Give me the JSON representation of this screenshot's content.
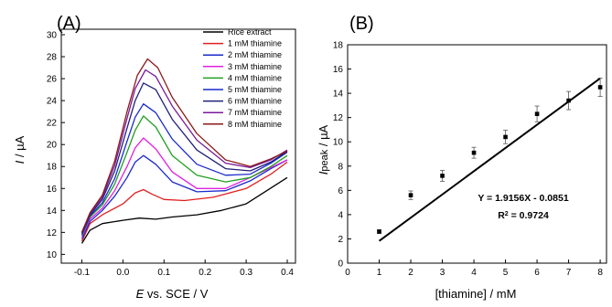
{
  "chart_data": [
    {
      "type": "line",
      "panel": "(A)",
      "xlabel_italic": "E",
      "xlabel_rest": " vs. SCE / V",
      "ylabel_italic": "I",
      "ylabel_rest": " / µA",
      "xlim": [
        -0.15,
        0.42
      ],
      "ylim": [
        9.2,
        30.5
      ],
      "xticks": [
        -0.1,
        0.0,
        0.1,
        0.2,
        0.3,
        0.4
      ],
      "xtick_labels": [
        "-0.1",
        "0.0",
        "0.1",
        "0.2",
        "0.3",
        "0.4"
      ],
      "yticks": [
        10,
        12,
        14,
        16,
        18,
        20,
        22,
        24,
        26,
        28,
        30
      ],
      "ytick_labels": [
        "10",
        "12",
        "14",
        "16",
        "18",
        "20",
        "22",
        "24",
        "26",
        "28",
        "30"
      ],
      "grid": false,
      "legend_position": "top-right",
      "series": [
        {
          "name": "Rice extract",
          "color": "#000000",
          "x": [
            -0.1,
            -0.08,
            -0.05,
            0.0,
            0.04,
            0.08,
            0.12,
            0.18,
            0.24,
            0.3,
            0.35,
            0.4
          ],
          "y": [
            11.0,
            12.2,
            12.8,
            13.1,
            13.3,
            13.2,
            13.4,
            13.6,
            14.0,
            14.6,
            15.8,
            17.0
          ]
        },
        {
          "name": "1 mM thiamine",
          "color": "#e02020",
          "x": [
            -0.1,
            -0.08,
            -0.05,
            0.0,
            0.03,
            0.05,
            0.07,
            0.1,
            0.15,
            0.22,
            0.3,
            0.36,
            0.4
          ],
          "y": [
            11.2,
            12.8,
            13.6,
            14.6,
            15.6,
            15.9,
            15.5,
            15.0,
            14.9,
            15.2,
            16.0,
            17.3,
            18.4
          ]
        },
        {
          "name": "2 mM thiamine",
          "color": "#1a2acc",
          "x": [
            -0.1,
            -0.08,
            -0.05,
            -0.02,
            0.01,
            0.03,
            0.05,
            0.08,
            0.12,
            0.18,
            0.25,
            0.31,
            0.36,
            0.4
          ],
          "y": [
            11.4,
            13.0,
            14.0,
            15.3,
            17.0,
            18.4,
            19.0,
            18.2,
            16.6,
            15.7,
            15.8,
            16.7,
            17.8,
            18.6
          ]
        },
        {
          "name": "3 mM thiamine",
          "color": "#e020e0",
          "x": [
            -0.1,
            -0.08,
            -0.05,
            -0.02,
            0.01,
            0.03,
            0.05,
            0.08,
            0.12,
            0.18,
            0.25,
            0.31,
            0.36,
            0.4
          ],
          "y": [
            11.6,
            13.2,
            14.2,
            15.8,
            18.0,
            19.7,
            20.6,
            19.6,
            17.5,
            16.0,
            16.0,
            17.0,
            17.9,
            18.6
          ]
        },
        {
          "name": "4 mM thiamine",
          "color": "#20a020",
          "x": [
            -0.1,
            -0.08,
            -0.05,
            -0.02,
            0.01,
            0.03,
            0.05,
            0.08,
            0.12,
            0.18,
            0.25,
            0.31,
            0.36,
            0.4
          ],
          "y": [
            11.7,
            13.4,
            14.5,
            16.4,
            19.3,
            21.3,
            22.6,
            21.6,
            19.0,
            17.2,
            16.6,
            17.0,
            18.0,
            19.0
          ]
        },
        {
          "name": "5 mM thiamine",
          "color": "#1a2acc",
          "x": [
            -0.1,
            -0.08,
            -0.05,
            -0.02,
            0.01,
            0.03,
            0.05,
            0.08,
            0.12,
            0.18,
            0.25,
            0.31,
            0.36,
            0.4
          ],
          "y": [
            11.8,
            13.5,
            14.7,
            16.9,
            20.3,
            22.5,
            23.7,
            22.9,
            20.5,
            18.2,
            17.2,
            17.3,
            18.3,
            19.3
          ]
        },
        {
          "name": "6 mM thiamine",
          "color": "#20207a",
          "x": [
            -0.1,
            -0.08,
            -0.05,
            -0.02,
            0.01,
            0.03,
            0.05,
            0.08,
            0.12,
            0.18,
            0.25,
            0.31,
            0.36,
            0.4
          ],
          "y": [
            11.9,
            13.6,
            15.0,
            17.6,
            21.5,
            24.0,
            25.6,
            25.0,
            22.3,
            19.5,
            17.8,
            17.6,
            18.4,
            19.4
          ]
        },
        {
          "name": "7 mM thiamine",
          "color": "#7a1a9a",
          "x": [
            -0.1,
            -0.08,
            -0.05,
            -0.02,
            0.01,
            0.03,
            0.055,
            0.08,
            0.12,
            0.18,
            0.25,
            0.31,
            0.36,
            0.4
          ],
          "y": [
            12.0,
            13.7,
            15.2,
            18.1,
            22.4,
            25.1,
            26.8,
            26.2,
            23.5,
            20.4,
            18.3,
            17.9,
            18.6,
            19.5
          ]
        },
        {
          "name": "8 mM thiamine",
          "color": "#8a1a1a",
          "x": [
            -0.1,
            -0.08,
            -0.05,
            -0.02,
            0.01,
            0.035,
            0.06,
            0.085,
            0.12,
            0.18,
            0.25,
            0.31,
            0.36,
            0.4
          ],
          "y": [
            12.0,
            13.8,
            15.4,
            18.5,
            23.0,
            26.3,
            27.8,
            27.0,
            24.3,
            21.0,
            18.6,
            18.0,
            18.7,
            19.4
          ]
        }
      ]
    },
    {
      "type": "scatter",
      "panel": "(B)",
      "xlabel": "[thiamine] / mM",
      "ylabel_italic": "I",
      "ylabel_sub": "peak",
      "ylabel_rest": " / µA",
      "xlim": [
        0,
        8.2
      ],
      "ylim": [
        0,
        18
      ],
      "xticks": [
        0,
        1,
        2,
        3,
        4,
        5,
        6,
        7,
        8
      ],
      "xtick_labels": [
        "0",
        "1",
        "2",
        "3",
        "4",
        "5",
        "6",
        "7",
        "8"
      ],
      "yticks": [
        0,
        2,
        4,
        6,
        8,
        10,
        12,
        14,
        16,
        18
      ],
      "ytick_labels": [
        "0",
        "2",
        "4",
        "6",
        "8",
        "10",
        "12",
        "14",
        "16",
        "18"
      ],
      "grid": false,
      "x": [
        1,
        2,
        3,
        4,
        5,
        6,
        7,
        8
      ],
      "y": [
        2.6,
        5.6,
        7.2,
        9.1,
        10.4,
        12.3,
        13.4,
        14.5
      ],
      "error": [
        0.15,
        0.35,
        0.45,
        0.45,
        0.55,
        0.65,
        0.75,
        0.75
      ],
      "fit": {
        "slope": 1.9156,
        "intercept": -0.0851,
        "x_range": [
          1,
          8
        ]
      },
      "equation": "Y = 1.9156X - 0.0851",
      "r2_prefix": "R",
      "r2_sup": "2",
      "r2_value": " = 0.9724"
    }
  ]
}
